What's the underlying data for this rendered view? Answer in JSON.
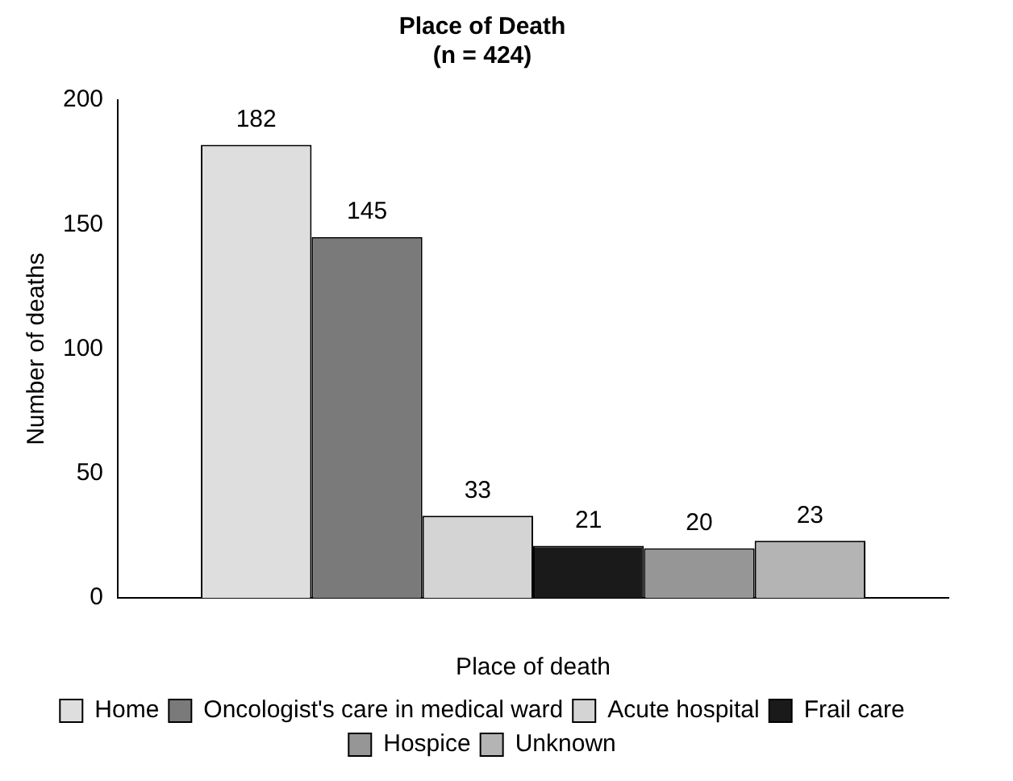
{
  "chart_data": {
    "type": "bar",
    "title": "Place of Death",
    "subtitle": "(n = 424)",
    "xlabel": "Place of death",
    "ylabel": "Number of deaths",
    "categories": [
      null
    ],
    "series": [
      {
        "name": "Home",
        "color": "#dedede",
        "values": [
          182
        ]
      },
      {
        "name": "Oncologist's care in medical ward",
        "color": "#7a7a7a",
        "values": [
          145
        ]
      },
      {
        "name": "Acute hospital",
        "color": "#d4d4d4",
        "values": [
          33
        ]
      },
      {
        "name": "Frail care",
        "color": "#1a1a1a",
        "values": [
          21
        ]
      },
      {
        "name": "Hospice",
        "color": "#969696",
        "values": [
          20
        ]
      },
      {
        "name": "Unknown",
        "color": "#b4b4b4",
        "values": [
          23
        ]
      }
    ],
    "ylim": [
      0,
      200
    ],
    "yticks": [
      0,
      50,
      100,
      150,
      200
    ],
    "grid": false,
    "legend": "bottom",
    "data_labels": true
  }
}
